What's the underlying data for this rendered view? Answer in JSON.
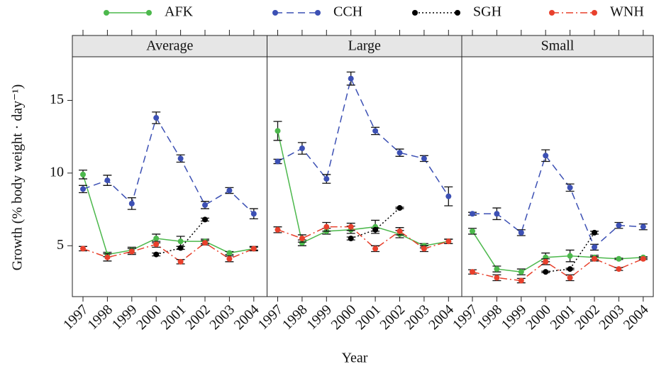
{
  "chart_data": {
    "type": "line",
    "ylabel": "Growth (% body weight · day⁻¹)",
    "xlabel": "Year",
    "categories": [
      "1997",
      "1998",
      "1999",
      "2000",
      "2001",
      "2002",
      "2003",
      "2004"
    ],
    "ylim": [
      1.5,
      18
    ],
    "yticks": [
      5,
      10,
      15
    ],
    "series": [
      {
        "name": "AFK",
        "color": "#4cb84c",
        "dash": "none"
      },
      {
        "name": "CCH",
        "color": "#3c50b4",
        "dash": "10 6"
      },
      {
        "name": "SGH",
        "color": "#000000",
        "dash": "2 3"
      },
      {
        "name": "WNH",
        "color": "#e8402c",
        "dash": "10 4 2 4"
      }
    ],
    "panels": [
      {
        "title": "Average",
        "values": [
          [
            9.9,
            4.4,
            4.7,
            5.5,
            5.3,
            5.3,
            4.5,
            4.8
          ],
          [
            8.9,
            9.5,
            7.9,
            13.8,
            11.0,
            7.8,
            8.8,
            7.2
          ],
          [
            null,
            null,
            null,
            4.4,
            4.85,
            6.8,
            null,
            null
          ],
          [
            4.8,
            4.2,
            4.6,
            5.1,
            3.9,
            5.2,
            4.1,
            4.8
          ]
        ],
        "errors": [
          [
            0.3,
            0.15,
            0.2,
            0.3,
            0.35,
            0.15,
            0.1,
            0.1
          ],
          [
            0.25,
            0.35,
            0.4,
            0.4,
            0.25,
            0.25,
            0.2,
            0.35
          ],
          [
            null,
            null,
            null,
            0.1,
            0.1,
            0.1,
            null,
            null
          ],
          [
            0.15,
            0.25,
            0.2,
            0.2,
            0.15,
            0.15,
            0.2,
            0.15
          ]
        ]
      },
      {
        "title": "Large",
        "values": [
          [
            12.9,
            5.2,
            6.0,
            6.1,
            6.3,
            5.8,
            5.0,
            5.3
          ],
          [
            10.8,
            11.7,
            9.6,
            16.5,
            12.9,
            11.4,
            11.0,
            8.4
          ],
          [
            null,
            null,
            null,
            5.5,
            6.1,
            7.6,
            null,
            null
          ],
          [
            6.1,
            5.5,
            6.3,
            6.3,
            4.8,
            6.0,
            4.8,
            5.3
          ]
        ],
        "errors": [
          [
            0.65,
            0.2,
            0.2,
            0.25,
            0.45,
            0.25,
            0.15,
            0.15
          ],
          [
            0.15,
            0.4,
            0.3,
            0.45,
            0.25,
            0.25,
            0.2,
            0.65
          ],
          [
            null,
            null,
            null,
            0.1,
            0.1,
            0.05,
            null,
            null
          ],
          [
            0.2,
            0.25,
            0.3,
            0.25,
            0.2,
            0.25,
            0.2,
            0.15
          ]
        ]
      },
      {
        "title": "Small",
        "values": [
          [
            6.0,
            3.4,
            3.2,
            4.2,
            4.3,
            4.2,
            4.1,
            4.2
          ],
          [
            7.2,
            7.2,
            5.9,
            11.2,
            9.0,
            4.9,
            6.4,
            6.3
          ],
          [
            null,
            null,
            null,
            3.2,
            3.4,
            5.9,
            null,
            null
          ],
          [
            3.2,
            2.8,
            2.6,
            3.9,
            2.8,
            4.1,
            3.4,
            4.1
          ]
        ],
        "errors": [
          [
            0.2,
            0.2,
            0.2,
            0.3,
            0.4,
            0.15,
            0.05,
            0.05
          ],
          [
            0.1,
            0.4,
            0.2,
            0.4,
            0.25,
            0.2,
            0.2,
            0.2
          ],
          [
            null,
            null,
            null,
            0.05,
            0.05,
            0.1,
            null,
            null
          ],
          [
            0.15,
            0.2,
            0.15,
            0.2,
            0.2,
            0.15,
            0.1,
            0.05
          ]
        ]
      }
    ]
  }
}
